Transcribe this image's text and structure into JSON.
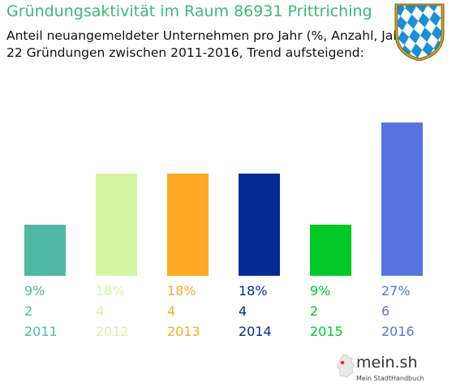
{
  "header": {
    "title": "Gründungsaktivität im Raum 86931 Prittriching",
    "subtitle_line1": "Anteil neuangemeldeter Unternehmen pro Jahr (%, Anzahl, Jahr)",
    "subtitle_line2": "22 Gründungen zwischen 2011-2016, Trend aufsteigend:"
  },
  "crest": {
    "icon": "bavarian-lozenges-crest-icon",
    "colors": [
      "#1a8fd1",
      "#ffffff",
      "#c9a227"
    ]
  },
  "logo": {
    "main": "mein.sh",
    "sub": "Mein StadtHandbuch"
  },
  "chart_data": {
    "type": "bar",
    "categories": [
      "2011",
      "2012",
      "2013",
      "2014",
      "2015",
      "2016"
    ],
    "values": [
      9,
      18,
      18,
      18,
      9,
      27
    ],
    "counts": [
      2,
      4,
      4,
      4,
      2,
      6
    ],
    "percent_labels": [
      "9%",
      "18%",
      "18%",
      "18%",
      "9%",
      "27%"
    ],
    "count_labels": [
      "2",
      "4",
      "4",
      "4",
      "2",
      "6"
    ],
    "colors": [
      "#52b8a6",
      "#d4f5a0",
      "#ffa824",
      "#052c95",
      "#00c927",
      "#5773de"
    ],
    "ylim": [
      0,
      27
    ],
    "grid": false,
    "legend": "none"
  }
}
